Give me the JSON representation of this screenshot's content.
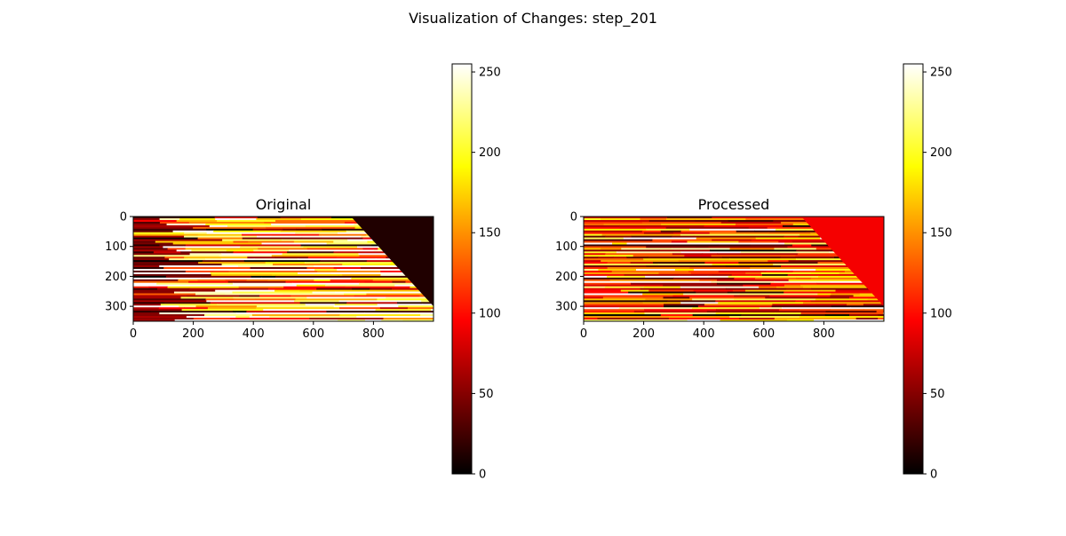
{
  "figure": {
    "title": "Visualization of Changes: step_201"
  },
  "colors": {
    "axis": "#000000",
    "background": "#ffffff",
    "colormap": [
      "#000000",
      "#ff0000",
      "#ffff00",
      "#ffffff"
    ],
    "colormap_stops": [
      0,
      0.375,
      0.75,
      1
    ]
  },
  "chart_data": [
    {
      "type": "heatmap",
      "title": "Original",
      "colormap": "hot",
      "xlim": [
        0,
        1000
      ],
      "ylim": [
        350,
        0
      ],
      "xticks": [
        0,
        200,
        400,
        600,
        800
      ],
      "yticks": [
        0,
        100,
        200,
        300
      ],
      "clim": [
        0,
        255
      ],
      "colorbar_ticks": [
        0,
        50,
        100,
        150,
        200,
        250
      ],
      "region_value": 12,
      "region_boundary": {
        "top_x": 725,
        "bottom_x": 1000,
        "bottom_y": 300
      },
      "row_band_values": [
        40,
        210,
        150,
        95,
        230,
        255,
        180,
        60,
        200,
        255,
        120,
        240,
        90,
        255,
        170,
        220,
        30,
        255,
        140,
        250,
        80,
        255,
        190,
        110,
        255,
        45,
        220,
        160,
        255,
        70,
        240,
        130,
        255,
        200,
        20,
        255,
        175,
        100,
        245,
        255,
        150,
        65,
        230,
        255,
        185,
        90,
        255,
        140,
        250,
        55,
        255,
        210,
        120,
        255,
        35,
        240,
        170,
        255,
        95,
        200
      ]
    },
    {
      "type": "heatmap",
      "title": "Processed",
      "colormap": "hot",
      "xlim": [
        0,
        1000
      ],
      "ylim": [
        350,
        0
      ],
      "xticks": [
        0,
        200,
        400,
        600,
        800
      ],
      "yticks": [
        0,
        100,
        200,
        300
      ],
      "clim": [
        0,
        255
      ],
      "colorbar_ticks": [
        0,
        50,
        100,
        150,
        200,
        250
      ],
      "region_value": 92,
      "region_boundary": {
        "top_x": 725,
        "bottom_x": 1000,
        "bottom_y": 300
      },
      "row_band_values": [
        90,
        200,
        60,
        120,
        180,
        40,
        95,
        230,
        70,
        110,
        160,
        50,
        210,
        85,
        130,
        240,
        65,
        100,
        175,
        45,
        220,
        90,
        140,
        60,
        200,
        105,
        75,
        185,
        50,
        120,
        230,
        95,
        160,
        40,
        210,
        80,
        130,
        250,
        60,
        100,
        190,
        70,
        140,
        45,
        220,
        110,
        85,
        170,
        55,
        200,
        95,
        65,
        240,
        120,
        80,
        180,
        40,
        150,
        100,
        215
      ]
    }
  ]
}
